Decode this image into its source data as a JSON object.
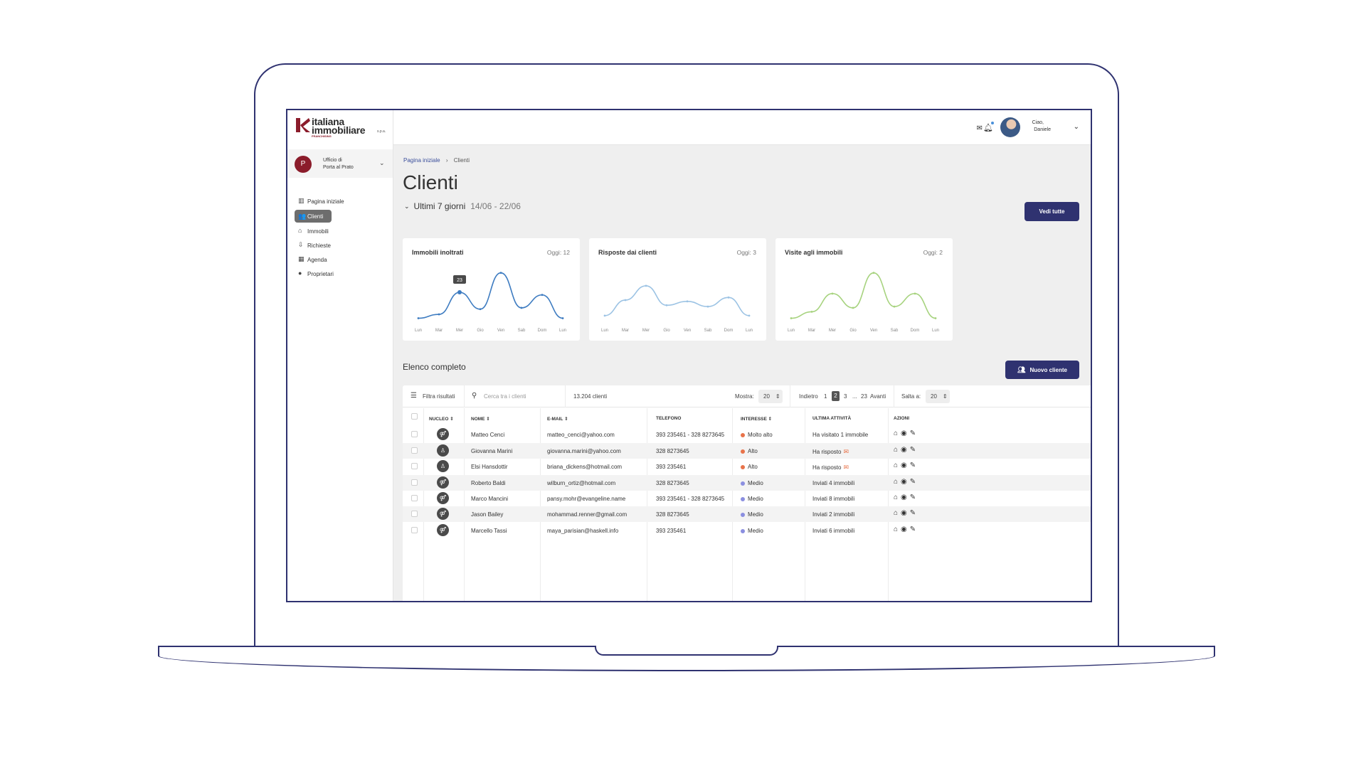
{
  "brand": {
    "name_line1": "italiana",
    "name_line2": "immobiliare",
    "spa": "s.p.a.",
    "tagline": "FRANCHISING",
    "accent": "#8b1c2b"
  },
  "office": {
    "initial": "P",
    "line1": "Ufficio di",
    "line2": "Porta al Prato"
  },
  "nav": [
    {
      "label": "Pagina iniziale",
      "icon": "chart-icon",
      "glyph": "▥"
    },
    {
      "label": "Clienti",
      "icon": "users-icon",
      "glyph": "👥",
      "active": true
    },
    {
      "label": "Immobili",
      "icon": "home-icon",
      "glyph": "⌂"
    },
    {
      "label": "Richieste",
      "icon": "inbox-icon",
      "glyph": "⇩"
    },
    {
      "label": "Agenda",
      "icon": "calendar-icon",
      "glyph": "▦"
    },
    {
      "label": "Proprietari",
      "icon": "person-icon",
      "glyph": "●"
    }
  ],
  "topbar": {
    "greeting1": "Ciao,",
    "greeting2": "Daniele"
  },
  "breadcrumb": {
    "home": "Pagina iniziale",
    "sep": "›",
    "current": "Clienti"
  },
  "page_title": "Clienti",
  "period": {
    "label": "Ultimi 7 giorni",
    "range": "14/06 - 22/06"
  },
  "buttons": {
    "vedi_tutte": "Vedi tutte",
    "nuovo_cliente": "Nuovo cliente"
  },
  "colors": {
    "primary": "#2f3270",
    "alto": "#e8734a",
    "medio": "#8b8fe0"
  },
  "chart_data": [
    {
      "type": "line",
      "title": "Immobili inoltrati",
      "today": "Oggi: 12",
      "categories": [
        "Lun",
        "Mar",
        "Mer",
        "Gio",
        "Ven",
        "Sab",
        "Dom",
        "Lun"
      ],
      "values": [
        3,
        6,
        23,
        10,
        38,
        11,
        21,
        3
      ],
      "tooltip": {
        "index": 2,
        "label": "23"
      },
      "color": "#3e7cc1",
      "ylim": [
        0,
        40
      ]
    },
    {
      "type": "line",
      "title": "Risposte dai clienti",
      "today": "Oggi: 3",
      "categories": [
        "Lun",
        "Mar",
        "Mer",
        "Gio",
        "Ven",
        "Sab",
        "Dom",
        "Lun"
      ],
      "values": [
        5,
        17,
        28,
        13,
        16,
        12,
        19,
        5
      ],
      "color": "#9cc3e4",
      "ylim": [
        0,
        40
      ]
    },
    {
      "type": "line",
      "title": "Visite agli immobili",
      "today": "Oggi: 2",
      "categories": [
        "Lun",
        "Mar",
        "Mer",
        "Gio",
        "Ven",
        "Sab",
        "Dom",
        "Lun"
      ],
      "values": [
        3,
        8,
        22,
        11,
        38,
        12,
        22,
        3
      ],
      "color": "#a7d37f",
      "ylim": [
        0,
        40
      ]
    }
  ],
  "list_title": "Elenco completo",
  "toolbar": {
    "filter": "Filtra risultati",
    "search_placeholder": "Cerca tra i clienti",
    "count": "13.204 clienti",
    "show_label": "Mostra:",
    "show_value": "20",
    "prev": "Indietro",
    "pages": [
      "1",
      "2",
      "3",
      "...",
      "23"
    ],
    "next": "Avanti",
    "jump_label": "Salta a:",
    "jump_value": "20"
  },
  "table": {
    "headers": [
      "NUCLEO",
      "NOME",
      "E-MAIL",
      "TELEFONO",
      "INTERESSE",
      "ULTIMA ATTIVITÀ",
      "AZIONI"
    ],
    "rows": [
      {
        "nucleo": "couple",
        "nome": "Matteo Cenci",
        "email": "matteo_cenci@yahoo.com",
        "telefono": "393 235461 - 328 8273645",
        "interesse": "Molto alto",
        "level": "alto",
        "attivita": "Ha visitato 1 immobile",
        "mail": false
      },
      {
        "nucleo": "single",
        "nome": "Giovanna Marini",
        "email": "giovanna.marini@yahoo.com",
        "telefono": "328 8273645",
        "interesse": "Alto",
        "level": "alto",
        "attivita": "Ha risposto",
        "mail": true
      },
      {
        "nucleo": "single",
        "nome": "Elsi Hansdottir",
        "email": "briana_dickens@hotmail.com",
        "telefono": "393 235461",
        "interesse": "Alto",
        "level": "alto",
        "attivita": "Ha risposto",
        "mail": true
      },
      {
        "nucleo": "couple",
        "nome": "Roberto Baldi",
        "email": "wilburn_ortiz@hotmail.com",
        "telefono": "328 8273645",
        "interesse": "Medio",
        "level": "medio",
        "attivita": "Inviati 4 immobili",
        "mail": false
      },
      {
        "nucleo": "couple",
        "nome": "Marco Mancini",
        "email": "pansy.mohr@evangeline.name",
        "telefono": "393 235461 - 328 8273645",
        "interesse": "Medio",
        "level": "medio",
        "attivita": "Inviati 8 immobili",
        "mail": false
      },
      {
        "nucleo": "couple",
        "nome": "Jason Bailey",
        "email": "mohammad.renner@gmail.com",
        "telefono": "328 8273645",
        "interesse": "Medio",
        "level": "medio",
        "attivita": "Inviati 2 immobili",
        "mail": false
      },
      {
        "nucleo": "couple",
        "nome": "Marcello Tassi",
        "email": "maya_parisian@haskell.info",
        "telefono": "393 235461",
        "interesse": "Medio",
        "level": "medio",
        "attivita": "Inviati 6 immobili",
        "mail": false
      }
    ]
  }
}
